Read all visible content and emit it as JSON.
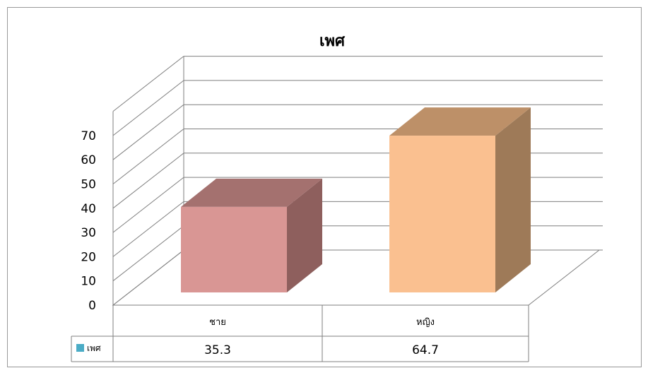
{
  "chart_data": {
    "type": "bar",
    "title": "เพศ",
    "categories": [
      "ชาย",
      "หญิง"
    ],
    "series": [
      {
        "name": "เพศ",
        "values": [
          35.3,
          64.7
        ]
      }
    ],
    "ylim": [
      0,
      70
    ],
    "yticks": [
      0,
      10,
      20,
      30,
      40,
      50,
      60,
      70
    ],
    "grid": true,
    "legend": "data-table",
    "data_table": true,
    "colors": {
      "bar_front": [
        "#d99694",
        "#fac090"
      ],
      "bar_top": [
        "#a4716f",
        "#bd9068"
      ],
      "bar_side": [
        "#8e5f5d",
        "#9e7a58"
      ],
      "legend_key": "#4bacc6",
      "grid": "#7f7f7f"
    }
  }
}
